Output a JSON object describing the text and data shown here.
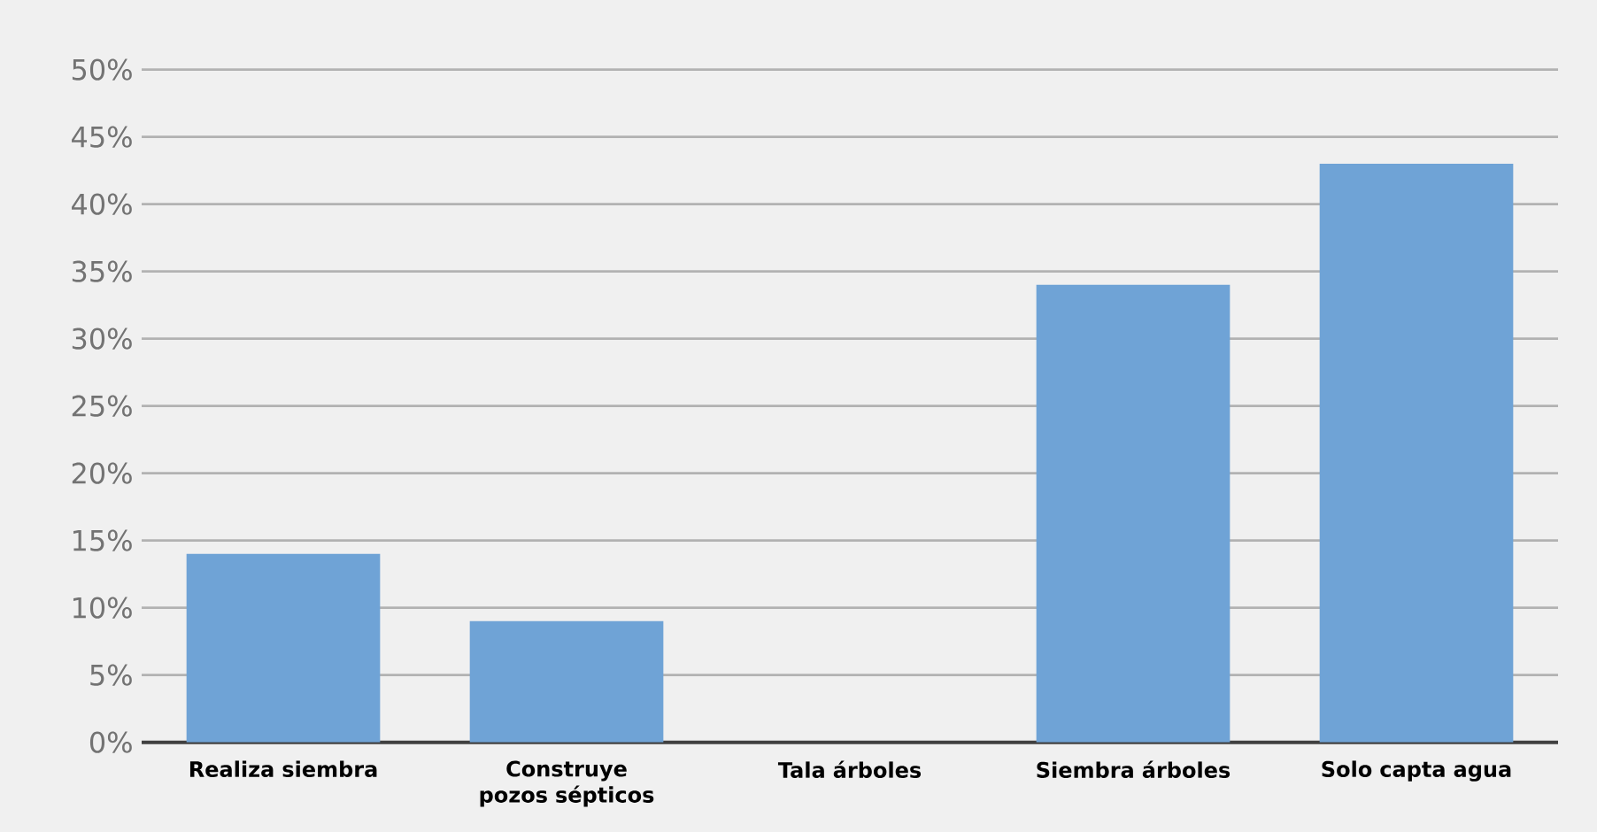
{
  "chart_data": {
    "type": "bar",
    "categories": [
      "Realiza siembra",
      "Construye pozos sépticos",
      "Tala árboles",
      "Siembra árboles",
      "Solo capta agua"
    ],
    "values": [
      14,
      9,
      0,
      34,
      43
    ],
    "color": "#6fa3d6",
    "ylim": [
      0,
      50
    ],
    "yticks": [
      {
        "value": 0,
        "label": "0%"
      },
      {
        "value": 5,
        "label": "5%"
      },
      {
        "value": 10,
        "label": "10%"
      },
      {
        "value": 15,
        "label": "15%"
      },
      {
        "value": 20,
        "label": "20%"
      },
      {
        "value": 25,
        "label": "25%"
      },
      {
        "value": 30,
        "label": "30%"
      },
      {
        "value": 35,
        "label": "35%"
      },
      {
        "value": 40,
        "label": "40%"
      },
      {
        "value": 45,
        "label": "45%"
      },
      {
        "value": 50,
        "label": "50%"
      }
    ],
    "grid": "y"
  }
}
